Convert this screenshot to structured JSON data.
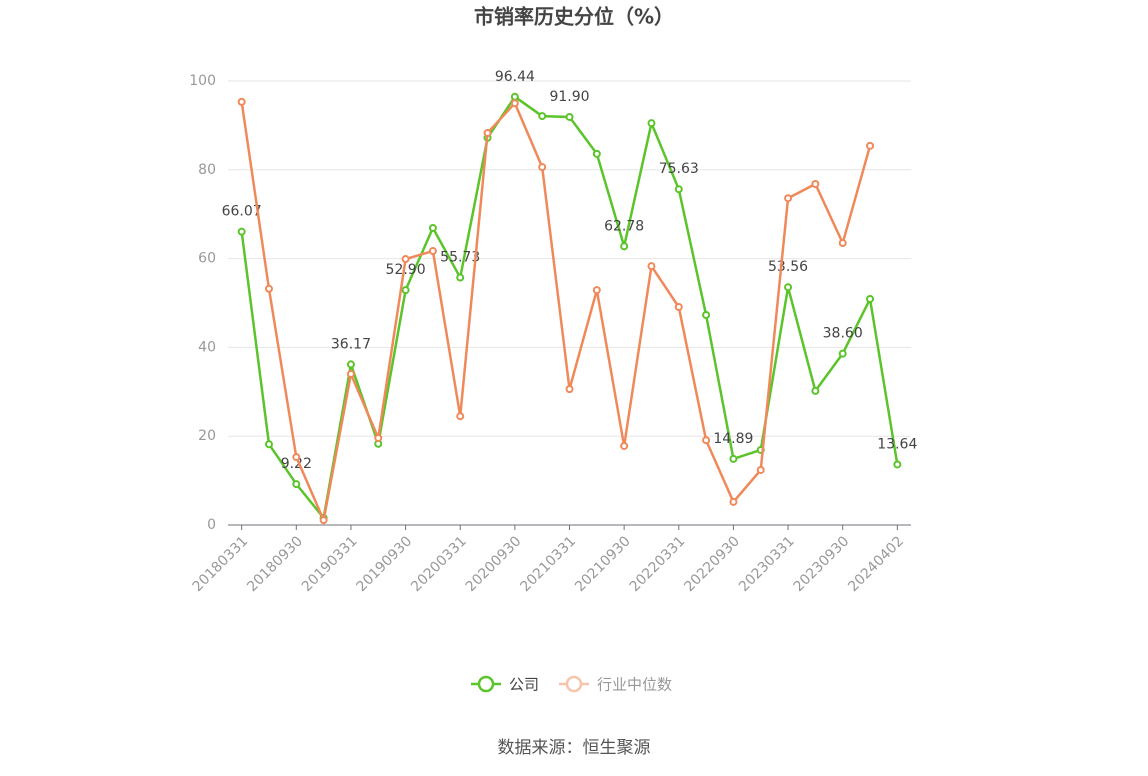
{
  "chart_data": {
    "type": "line",
    "title": "市销率历史分位（%）",
    "categories": [
      "20180331",
      null,
      "20180930",
      null,
      "20190331",
      null,
      "20190930",
      null,
      "20200331",
      null,
      "20200930",
      null,
      "20210331",
      null,
      "20210930",
      null,
      "20220331",
      null,
      "20220930",
      null,
      "20230331",
      null,
      "20230930",
      null,
      "20240402"
    ],
    "series": [
      {
        "name": "公司",
        "color": "#5ac42a",
        "values": [
          66.07,
          18.2,
          9.22,
          1.6,
          36.17,
          18.3,
          52.9,
          66.9,
          55.73,
          87.2,
          96.44,
          92.1,
          91.9,
          83.6,
          62.78,
          90.5,
          75.63,
          47.3,
          14.89,
          16.9,
          53.56,
          30.2,
          38.6,
          50.9,
          13.64
        ],
        "value_labels": [
          "66.07",
          null,
          "9.22",
          null,
          "36.17",
          null,
          "52.90",
          null,
          "55.73",
          null,
          "96.44",
          null,
          "91.90",
          null,
          "62.78",
          null,
          "75.63",
          null,
          "14.89",
          null,
          "53.56",
          null,
          "38.60",
          null,
          "13.64"
        ]
      },
      {
        "name": "行业中位数",
        "color": "#f0895a",
        "values": [
          95.3,
          53.2,
          15.3,
          1.1,
          34.0,
          19.6,
          59.9,
          61.7,
          24.5,
          88.3,
          95.0,
          80.6,
          30.6,
          52.9,
          17.8,
          58.3,
          49.1,
          19.1,
          5.2,
          12.4,
          73.6,
          76.8,
          63.5,
          85.4,
          null
        ]
      }
    ],
    "ylim": [
      0,
      100
    ],
    "yticks": [
      0,
      20,
      40,
      60,
      80,
      100
    ],
    "grid": true
  },
  "source": "数据来源：恒生聚源"
}
